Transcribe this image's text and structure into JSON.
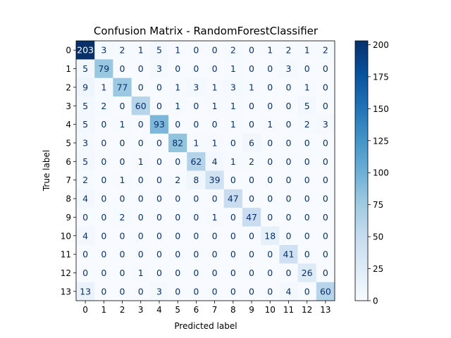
{
  "chart_data": {
    "type": "heatmap",
    "title": "Confusion Matrix - RandomForestClassifier",
    "xlabel": "Predicted label",
    "ylabel": "True label",
    "x_categories": [
      "0",
      "1",
      "2",
      "3",
      "4",
      "5",
      "6",
      "7",
      "8",
      "9",
      "10",
      "11",
      "12",
      "13"
    ],
    "y_categories": [
      "0",
      "1",
      "2",
      "3",
      "4",
      "5",
      "6",
      "7",
      "8",
      "9",
      "10",
      "11",
      "12",
      "13"
    ],
    "values": [
      [
        203,
        3,
        2,
        1,
        5,
        1,
        0,
        0,
        2,
        0,
        1,
        2,
        1,
        2
      ],
      [
        5,
        79,
        0,
        0,
        3,
        0,
        0,
        0,
        1,
        0,
        0,
        3,
        0,
        0
      ],
      [
        9,
        1,
        77,
        0,
        0,
        1,
        3,
        1,
        3,
        1,
        0,
        0,
        1,
        0
      ],
      [
        5,
        2,
        0,
        60,
        0,
        1,
        0,
        1,
        1,
        0,
        0,
        0,
        5,
        0
      ],
      [
        5,
        0,
        1,
        0,
        93,
        0,
        0,
        0,
        1,
        0,
        1,
        0,
        2,
        3
      ],
      [
        3,
        0,
        0,
        0,
        0,
        82,
        1,
        1,
        0,
        6,
        0,
        0,
        0,
        0
      ],
      [
        5,
        0,
        0,
        1,
        0,
        0,
        62,
        4,
        1,
        2,
        0,
        0,
        0,
        0
      ],
      [
        2,
        0,
        1,
        0,
        0,
        2,
        8,
        39,
        0,
        0,
        0,
        0,
        0,
        0
      ],
      [
        4,
        0,
        0,
        0,
        0,
        0,
        0,
        0,
        47,
        0,
        0,
        0,
        0,
        0
      ],
      [
        0,
        0,
        2,
        0,
        0,
        0,
        0,
        1,
        0,
        47,
        0,
        0,
        0,
        0
      ],
      [
        4,
        0,
        0,
        0,
        0,
        0,
        0,
        0,
        0,
        0,
        18,
        0,
        0,
        0
      ],
      [
        0,
        0,
        0,
        0,
        0,
        0,
        0,
        0,
        0,
        0,
        0,
        41,
        0,
        0
      ],
      [
        0,
        0,
        0,
        1,
        0,
        0,
        0,
        0,
        0,
        0,
        0,
        0,
        26,
        0
      ],
      [
        13,
        0,
        0,
        0,
        3,
        0,
        0,
        0,
        0,
        0,
        0,
        4,
        0,
        60
      ]
    ],
    "colormap": "Blues",
    "color_range": [
      0,
      203
    ],
    "colorbar_ticks": [
      0,
      25,
      50,
      75,
      100,
      125,
      150,
      175,
      200
    ],
    "colorbar_tick_labels": [
      "0",
      "25",
      "50",
      "75",
      "100",
      "125",
      "150",
      "175",
      "200"
    ],
    "text_colors": {
      "dark_cell": "#ffffff",
      "light_cell": "#08306b"
    },
    "grid": false
  }
}
